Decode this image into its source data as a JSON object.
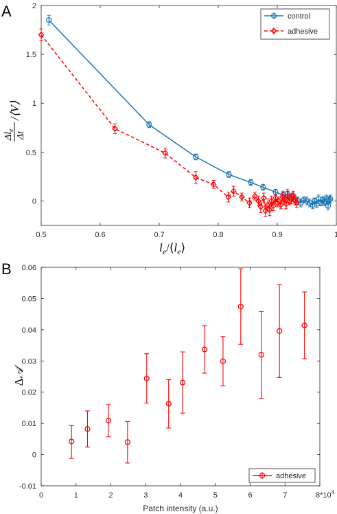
{
  "chart_data": [
    {
      "panel": "A",
      "type": "line",
      "xlabel": "l_e/⟨l_e⟩",
      "ylabel": "(Δl_e/Δt)/⟨V⟩",
      "xlim": [
        0.5,
        1.0
      ],
      "ylim": [
        -0.25,
        2.0
      ],
      "xticks": [
        "0.5",
        "0.6",
        "0.7",
        "0.8",
        "0.9",
        "1"
      ],
      "yticks": [
        "0",
        "0.5",
        "1",
        "1.5",
        "2"
      ],
      "grid": false,
      "legend_position": "top-right",
      "series": [
        {
          "name": "control",
          "color": "#1f77b4",
          "line": "solid",
          "marker": "circle",
          "points": [
            {
              "x": 0.513,
              "y": 1.85,
              "err": 0.05
            },
            {
              "x": 0.683,
              "y": 0.78,
              "err": 0.03
            },
            {
              "x": 0.762,
              "y": 0.45,
              "err": 0.03
            },
            {
              "x": 0.818,
              "y": 0.27,
              "err": 0.03
            },
            {
              "x": 0.855,
              "y": 0.19,
              "err": 0.03
            },
            {
              "x": 0.876,
              "y": 0.14,
              "err": 0.03
            },
            {
              "x": 0.897,
              "y": 0.09,
              "err": 0.03
            },
            {
              "x": 0.91,
              "y": 0.06,
              "err": 0.04
            },
            {
              "x": 0.917,
              "y": 0.07,
              "err": 0.05
            },
            {
              "x": 0.925,
              "y": 0.04,
              "err": 0.04
            },
            {
              "x": 0.93,
              "y": 0.02,
              "err": 0.04
            },
            {
              "x": 0.935,
              "y": 0.0,
              "err": 0.04
            },
            {
              "x": 0.94,
              "y": -0.02,
              "err": 0.04
            },
            {
              "x": 0.945,
              "y": 0.01,
              "err": 0.03
            },
            {
              "x": 0.95,
              "y": 0.0,
              "err": 0.04
            },
            {
              "x": 0.955,
              "y": -0.02,
              "err": 0.04
            },
            {
              "x": 0.96,
              "y": -0.04,
              "err": 0.04
            },
            {
              "x": 0.963,
              "y": 0.0,
              "err": 0.03
            },
            {
              "x": 0.967,
              "y": -0.03,
              "err": 0.04
            },
            {
              "x": 0.97,
              "y": 0.02,
              "err": 0.04
            },
            {
              "x": 0.974,
              "y": -0.02,
              "err": 0.03
            },
            {
              "x": 0.977,
              "y": 0.01,
              "err": 0.04
            },
            {
              "x": 0.98,
              "y": -0.01,
              "err": 0.04
            },
            {
              "x": 0.983,
              "y": 0.02,
              "err": 0.04
            },
            {
              "x": 0.986,
              "y": -0.05,
              "err": 0.04
            },
            {
              "x": 0.988,
              "y": 0.01,
              "err": 0.04
            },
            {
              "x": 0.99,
              "y": 0.02,
              "err": 0.04
            }
          ]
        },
        {
          "name": "adhesive",
          "color": "#ff0000",
          "line": "dashed",
          "marker": "diamond",
          "points": [
            {
              "x": 0.5,
              "y": 1.7,
              "err": 0.06
            },
            {
              "x": 0.625,
              "y": 0.74,
              "err": 0.05
            },
            {
              "x": 0.71,
              "y": 0.49,
              "err": 0.05
            },
            {
              "x": 0.762,
              "y": 0.24,
              "err": 0.06
            },
            {
              "x": 0.792,
              "y": 0.17,
              "err": 0.04
            },
            {
              "x": 0.817,
              "y": 0.04,
              "err": 0.05
            },
            {
              "x": 0.826,
              "y": 0.1,
              "err": 0.05
            },
            {
              "x": 0.84,
              "y": 0.04,
              "err": 0.04
            },
            {
              "x": 0.853,
              "y": -0.02,
              "err": 0.05
            },
            {
              "x": 0.862,
              "y": 0.05,
              "err": 0.04
            },
            {
              "x": 0.868,
              "y": 0.0,
              "err": 0.05
            },
            {
              "x": 0.872,
              "y": -0.06,
              "err": 0.06
            },
            {
              "x": 0.877,
              "y": 0.03,
              "err": 0.05
            },
            {
              "x": 0.88,
              "y": -0.1,
              "err": 0.06
            },
            {
              "x": 0.884,
              "y": -0.04,
              "err": 0.06
            },
            {
              "x": 0.887,
              "y": -0.09,
              "err": 0.06
            },
            {
              "x": 0.89,
              "y": 0.0,
              "err": 0.05
            },
            {
              "x": 0.893,
              "y": -0.05,
              "err": 0.05
            },
            {
              "x": 0.897,
              "y": 0.03,
              "err": 0.04
            },
            {
              "x": 0.9,
              "y": -0.02,
              "err": 0.04
            },
            {
              "x": 0.903,
              "y": 0.0,
              "err": 0.04
            },
            {
              "x": 0.906,
              "y": -0.04,
              "err": 0.04
            },
            {
              "x": 0.909,
              "y": 0.04,
              "err": 0.05
            },
            {
              "x": 0.912,
              "y": 0.02,
              "err": 0.04
            },
            {
              "x": 0.915,
              "y": -0.03,
              "err": 0.05
            },
            {
              "x": 0.918,
              "y": 0.05,
              "err": 0.05
            },
            {
              "x": 0.921,
              "y": 0.0,
              "err": 0.04
            },
            {
              "x": 0.924,
              "y": 0.02,
              "err": 0.05
            },
            {
              "x": 0.927,
              "y": 0.06,
              "err": 0.04
            },
            {
              "x": 0.93,
              "y": 0.0,
              "err": 0.04
            },
            {
              "x": 0.933,
              "y": -0.02,
              "err": 0.05
            }
          ]
        }
      ]
    },
    {
      "panel": "B",
      "type": "scatter",
      "xlabel": "Patch intensity (a.u.)",
      "ylabel": "ΔA",
      "xlim": [
        0,
        80000
      ],
      "ylim": [
        -0.01,
        0.06
      ],
      "xticks": [
        "0",
        "1",
        "2",
        "3",
        "4",
        "5",
        "6",
        "7",
        "8*10^4"
      ],
      "yticks": [
        "-0.01",
        "0",
        "0.01",
        "0.02",
        "0.03",
        "0.04",
        "0.05",
        "0.06"
      ],
      "grid": false,
      "legend_position": "bottom-right",
      "series": [
        {
          "name": "adhesive",
          "color": "#ff0000",
          "marker": "circle",
          "line": "none",
          "points": [
            {
              "x": 8700,
              "y": 0.0042,
              "lo": -0.0012,
              "hi": 0.0093
            },
            {
              "x": 13300,
              "y": 0.0082,
              "lo": 0.0024,
              "hi": 0.014
            },
            {
              "x": 19300,
              "y": 0.0109,
              "lo": 0.0057,
              "hi": 0.016
            },
            {
              "x": 24800,
              "y": 0.004,
              "lo": -0.0027,
              "hi": 0.0106
            },
            {
              "x": 30300,
              "y": 0.0244,
              "lo": 0.0165,
              "hi": 0.0323
            },
            {
              "x": 36600,
              "y": 0.0163,
              "lo": 0.0085,
              "hi": 0.024
            },
            {
              "x": 40600,
              "y": 0.0231,
              "lo": 0.0133,
              "hi": 0.0329
            },
            {
              "x": 46900,
              "y": 0.0337,
              "lo": 0.0261,
              "hi": 0.0413
            },
            {
              "x": 52200,
              "y": 0.0299,
              "lo": 0.022,
              "hi": 0.0378
            },
            {
              "x": 57300,
              "y": 0.0474,
              "lo": 0.0353,
              "hi": 0.0595
            },
            {
              "x": 63200,
              "y": 0.032,
              "lo": 0.018,
              "hi": 0.0458
            },
            {
              "x": 68400,
              "y": 0.0396,
              "lo": 0.0247,
              "hi": 0.0544
            },
            {
              "x": 75600,
              "y": 0.0414,
              "lo": 0.0307,
              "hi": 0.0521
            }
          ]
        }
      ]
    }
  ],
  "panel_letters": {
    "a": "A",
    "b": "B"
  },
  "labels": {
    "a_x_main": "l",
    "a_x_sub": "e",
    "a_x_mid": "/⟨",
    "a_x_main2": "l",
    "a_x_sub2": "e",
    "a_x_end": "⟩",
    "a_y_num": "Δl",
    "a_y_num_sub": "e",
    "a_y_den": "Δt",
    "a_y_rest": "/⟨V⟩",
    "b_y_delta": "Δ",
    "b_y_letter": "𝒜",
    "b_x": "Patch intensity (a.u.)"
  },
  "legend": {
    "a_control": "control",
    "a_adhesive": "adhesive",
    "b_adhesive": "adhesive"
  }
}
